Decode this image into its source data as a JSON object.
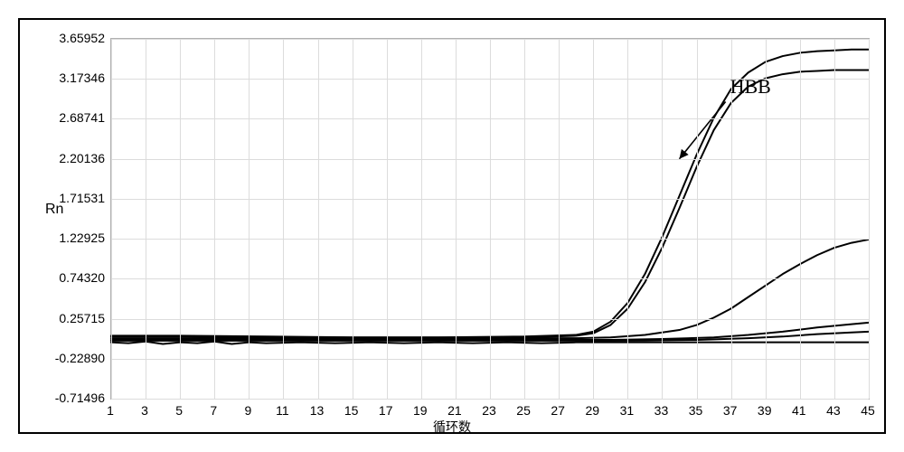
{
  "chart": {
    "type": "line",
    "xlabel": "循环数",
    "ylabel": "Rn",
    "xlim": [
      1,
      45
    ],
    "ylim": [
      -0.71496,
      3.65952
    ],
    "yticks": [
      -0.71496,
      -0.2289,
      0.25715,
      0.7432,
      1.22925,
      1.71531,
      2.20136,
      2.68741,
      3.17346,
      3.65952
    ],
    "ytick_labels": [
      "-0.71496",
      "-0.22890",
      "0.25715",
      "0.74320",
      "1.22925",
      "1.71531",
      "2.20136",
      "2.68741",
      "3.17346",
      "3.65952"
    ],
    "xticks": [
      1,
      3,
      5,
      7,
      9,
      11,
      13,
      15,
      17,
      19,
      21,
      23,
      25,
      27,
      29,
      31,
      33,
      35,
      37,
      39,
      41,
      43,
      45
    ],
    "background_color": "#ffffff",
    "grid_color": "#dcdcdc",
    "frame_color": "#000000",
    "line_color": "#000000",
    "line_width": 2,
    "annotation": {
      "text": "HBB",
      "x_data": 37,
      "y_data": 3.05,
      "arrow_to_x": 34,
      "arrow_to_y": 2.2,
      "fontsize": 22
    },
    "series": [
      {
        "name": "curve-top-1",
        "x": [
          1,
          5,
          10,
          15,
          20,
          25,
          28,
          29,
          30,
          31,
          32,
          33,
          34,
          35,
          36,
          37,
          38,
          39,
          40,
          41,
          42,
          43,
          44,
          45
        ],
        "y": [
          0.05,
          0.05,
          0.04,
          0.03,
          0.03,
          0.04,
          0.06,
          0.1,
          0.22,
          0.45,
          0.8,
          1.25,
          1.75,
          2.25,
          2.7,
          3.05,
          3.25,
          3.38,
          3.45,
          3.49,
          3.51,
          3.52,
          3.53,
          3.53
        ]
      },
      {
        "name": "curve-top-2",
        "x": [
          1,
          5,
          10,
          15,
          20,
          25,
          28,
          29,
          30,
          31,
          32,
          33,
          34,
          35,
          36,
          37,
          38,
          39,
          40,
          41,
          42,
          43,
          44,
          45
        ],
        "y": [
          0.04,
          0.04,
          0.03,
          0.03,
          0.03,
          0.03,
          0.05,
          0.08,
          0.18,
          0.38,
          0.7,
          1.12,
          1.6,
          2.1,
          2.55,
          2.88,
          3.08,
          3.18,
          3.23,
          3.26,
          3.27,
          3.28,
          3.28,
          3.28
        ]
      },
      {
        "name": "curve-mid",
        "x": [
          1,
          5,
          10,
          15,
          20,
          25,
          28,
          30,
          32,
          34,
          35,
          36,
          37,
          38,
          39,
          40,
          41,
          42,
          43,
          44,
          45
        ],
        "y": [
          0.02,
          0.02,
          0.02,
          0.02,
          0.02,
          0.02,
          0.02,
          0.03,
          0.06,
          0.12,
          0.18,
          0.27,
          0.38,
          0.52,
          0.66,
          0.8,
          0.92,
          1.03,
          1.12,
          1.18,
          1.22
        ]
      },
      {
        "name": "curve-low-1",
        "x": [
          1,
          5,
          10,
          15,
          20,
          25,
          30,
          33,
          36,
          38,
          40,
          42,
          44,
          45
        ],
        "y": [
          0.0,
          0.0,
          0.0,
          0.0,
          0.0,
          0.0,
          0.0,
          0.01,
          0.03,
          0.06,
          0.1,
          0.15,
          0.19,
          0.21
        ]
      },
      {
        "name": "curve-low-2",
        "x": [
          1,
          5,
          10,
          15,
          20,
          25,
          30,
          35,
          38,
          40,
          42,
          44,
          45
        ],
        "y": [
          -0.01,
          -0.01,
          -0.01,
          -0.01,
          -0.01,
          -0.01,
          -0.01,
          0.0,
          0.02,
          0.04,
          0.07,
          0.09,
          0.1
        ]
      },
      {
        "name": "baseline-wavy",
        "x": [
          1,
          2,
          3,
          4,
          5,
          6,
          7,
          8,
          9,
          10,
          12,
          14,
          16,
          18,
          20,
          22,
          24,
          26,
          28,
          30,
          34,
          38,
          42,
          45
        ],
        "y": [
          -0.03,
          -0.04,
          -0.02,
          -0.05,
          -0.03,
          -0.04,
          -0.02,
          -0.05,
          -0.03,
          -0.04,
          -0.03,
          -0.04,
          -0.03,
          -0.04,
          -0.03,
          -0.04,
          -0.03,
          -0.04,
          -0.03,
          -0.03,
          -0.03,
          -0.03,
          -0.03,
          -0.03
        ]
      }
    ]
  }
}
